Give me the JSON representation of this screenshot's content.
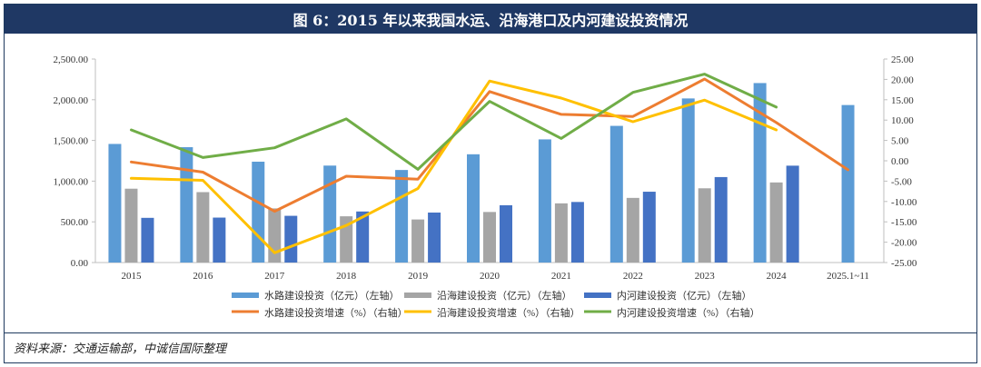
{
  "title": "图 6：2015 年以来我国水运、沿海港口及内河建设投资情况",
  "source": "资料来源：交通运输部，中诚信国际整理",
  "chart_data": {
    "type": "bar+line",
    "categories": [
      "2015",
      "2016",
      "2017",
      "2018",
      "2019",
      "2020",
      "2021",
      "2022",
      "2023",
      "2024",
      "2025.1~11"
    ],
    "left_axis": {
      "min": 0,
      "max": 2500,
      "ticks": [
        "0.00",
        "500.00",
        "1,000.00",
        "1,500.00",
        "2,000.00",
        "2,500.00"
      ]
    },
    "right_axis": {
      "min": -25,
      "max": 25,
      "ticks": [
        "-25.00",
        "-20.00",
        "-15.00",
        "-10.00",
        "-5.00",
        "0.00",
        "5.00",
        "10.00",
        "15.00",
        "20.00",
        "25.00"
      ]
    },
    "bar_series": [
      {
        "name": "水路建设投资（亿元）（左轴）",
        "color": "#5b9bd5",
        "values": [
          1457,
          1417,
          1239,
          1191,
          1137,
          1330,
          1513,
          1679,
          2016,
          2205,
          1935
        ]
      },
      {
        "name": "沿海建设投资（亿元）（左轴）",
        "color": "#a5a5a5",
        "values": [
          907,
          865,
          665,
          568,
          529,
          621,
          727,
          794,
          912,
          984,
          null
        ]
      },
      {
        "name": "内河建设投资（亿元）（左轴）",
        "color": "#4472c4",
        "values": [
          549,
          552,
          574,
          627,
          614,
          704,
          744,
          870,
          1050,
          1190,
          null
        ]
      }
    ],
    "line_series": [
      {
        "name": "水路建设投资增速（%）（右轴）",
        "color": "#ed7d31",
        "values": [
          -0.3,
          -2.8,
          -12.4,
          -3.8,
          -4.5,
          17.0,
          11.4,
          10.9,
          20.1,
          9.4,
          -2.2
        ]
      },
      {
        "name": "沿海建设投资增速（%）（右轴）",
        "color": "#ffc000",
        "values": [
          -4.3,
          -4.8,
          -22.6,
          -15.9,
          -6.8,
          19.6,
          15.4,
          9.6,
          14.9,
          7.6,
          null
        ]
      },
      {
        "name": "内河建设投资增速（%）（右轴）",
        "color": "#70ad47",
        "values": [
          7.6,
          0.8,
          3.2,
          10.3,
          -2.1,
          14.6,
          5.5,
          16.8,
          21.3,
          13.2,
          null
        ]
      }
    ]
  }
}
